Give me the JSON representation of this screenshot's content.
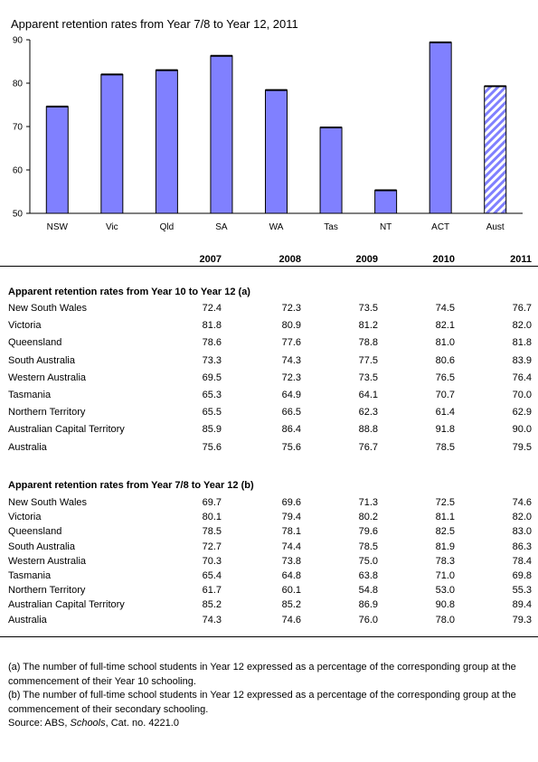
{
  "chart_data": {
    "type": "bar",
    "title": "Apparent retention rates from Year 7/8 to Year 12, 2011",
    "categories": [
      "NSW",
      "Vic",
      "Qld",
      "SA",
      "WA",
      "Tas",
      "NT",
      "ACT",
      "Aust"
    ],
    "values": [
      74.6,
      82.0,
      83.0,
      86.3,
      78.4,
      69.8,
      55.3,
      89.4,
      79.3
    ],
    "ylim": [
      50,
      90
    ],
    "yticks": [
      "50",
      "60",
      "70",
      "80",
      "90"
    ],
    "highlighted_category": "Aust",
    "bar_color": "#8080ff",
    "highlight_pattern": "diagonal-hatch",
    "grid": false
  },
  "table": {
    "years": [
      "2007",
      "2008",
      "2009",
      "2010",
      "2011"
    ],
    "sections": [
      {
        "title": "Apparent retention rates from Year 10 to Year 12 (a)",
        "rows": [
          {
            "label": "New South Wales",
            "values": [
              "72.4",
              "72.3",
              "73.5",
              "74.5",
              "76.7"
            ]
          },
          {
            "label": "Victoria",
            "values": [
              "81.8",
              "80.9",
              "81.2",
              "82.1",
              "82.0"
            ]
          },
          {
            "label": "Queensland",
            "values": [
              "78.6",
              "77.6",
              "78.8",
              "81.0",
              "81.8"
            ]
          },
          {
            "label": "South Australia",
            "values": [
              "73.3",
              "74.3",
              "77.5",
              "80.6",
              "83.9"
            ]
          },
          {
            "label": "Western Australia",
            "values": [
              "69.5",
              "72.3",
              "73.5",
              "76.5",
              "76.4"
            ]
          },
          {
            "label": "Tasmania",
            "values": [
              "65.3",
              "64.9",
              "64.1",
              "70.7",
              "70.0"
            ]
          },
          {
            "label": "Northern Territory",
            "values": [
              "65.5",
              "66.5",
              "62.3",
              "61.4",
              "62.9"
            ]
          },
          {
            "label": "Australian Capital Territory",
            "values": [
              "85.9",
              "86.4",
              "88.8",
              "91.8",
              "90.0"
            ]
          },
          {
            "label": "Australia",
            "values": [
              "75.6",
              "75.6",
              "76.7",
              "78.5",
              "79.5"
            ]
          }
        ]
      },
      {
        "title": "Apparent retention rates from Year 7/8 to Year 12 (b)",
        "rows": [
          {
            "label": "New South Wales",
            "values": [
              "69.7",
              "69.6",
              "71.3",
              "72.5",
              "74.6"
            ]
          },
          {
            "label": "Victoria",
            "values": [
              "80.1",
              "79.4",
              "80.2",
              "81.1",
              "82.0"
            ]
          },
          {
            "label": "Queensland",
            "values": [
              "78.5",
              "78.1",
              "79.6",
              "82.5",
              "83.0"
            ]
          },
          {
            "label": "South Australia",
            "values": [
              "72.7",
              "74.4",
              "78.5",
              "81.9",
              "86.3"
            ]
          },
          {
            "label": "Western Australia",
            "values": [
              "70.3",
              "73.8",
              "75.0",
              "78.3",
              "78.4"
            ]
          },
          {
            "label": "Tasmania",
            "values": [
              "65.4",
              "64.8",
              "63.8",
              "71.0",
              "69.8"
            ]
          },
          {
            "label": "Northern Territory",
            "values": [
              "61.7",
              "60.1",
              "54.8",
              "53.0",
              "55.3"
            ]
          },
          {
            "label": "Australian Capital Territory",
            "values": [
              "85.2",
              "85.2",
              "86.9",
              "90.8",
              "89.4"
            ]
          },
          {
            "label": "Australia",
            "values": [
              "74.3",
              "74.6",
              "76.0",
              "78.0",
              "79.3"
            ]
          }
        ]
      }
    ]
  },
  "notes": {
    "a": "(a) The number of full-time school students in Year 12 expressed as a percentage of the corresponding group at the commencement of their Year 10 schooling.",
    "b": "(b) The number of full-time school students in Year 12 expressed as a percentage of the corresponding group at the commencement of their secondary schooling.",
    "source_prefix": "Source: ABS, ",
    "source_italic": "Schools",
    "source_suffix": ", Cat. no. 4221.0"
  }
}
